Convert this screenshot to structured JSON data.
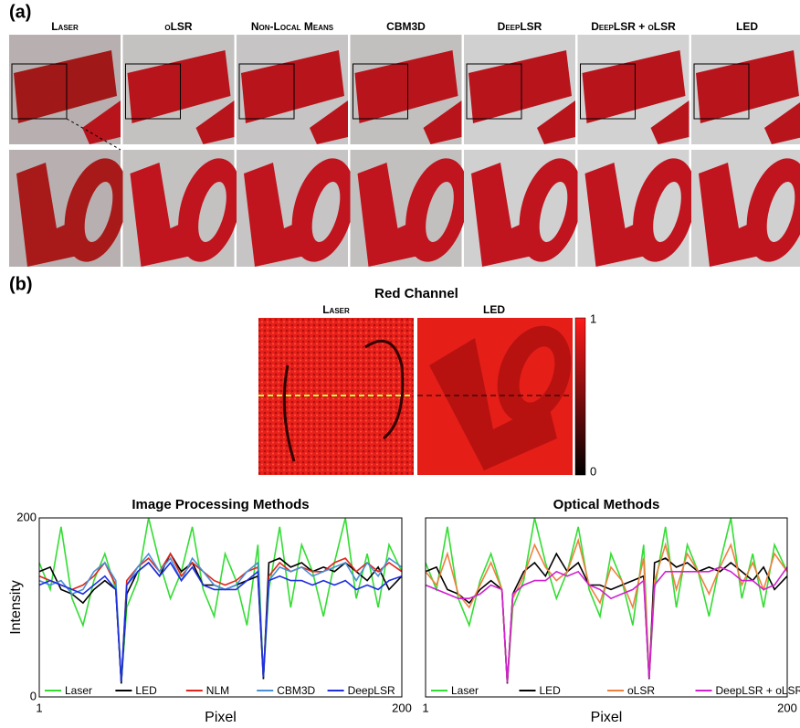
{
  "panel_labels": [
    "(a)",
    "(b)"
  ],
  "methods": [
    "Laser",
    "oLSR",
    "Non-Local Means",
    "CBM3D",
    "DeepLSR",
    "DeepLSR + oLSR",
    "LED"
  ],
  "red_channel": {
    "title": "Red Channel",
    "labels": [
      "Laser",
      "LED"
    ],
    "colorbar_ticks": [
      1,
      0
    ]
  },
  "chart_data": [
    {
      "type": "line",
      "title": "Image Processing Methods",
      "xlabel": "Pixel",
      "ylabel": "Intensity",
      "x": [
        1,
        7,
        13,
        19,
        25,
        31,
        37,
        43,
        46,
        49,
        55,
        61,
        67,
        73,
        79,
        85,
        91,
        97,
        103,
        109,
        115,
        121,
        124,
        127,
        133,
        139,
        145,
        151,
        157,
        163,
        169,
        175,
        181,
        187,
        193,
        200
      ],
      "xlim": [
        1,
        200
      ],
      "ylim": [
        0,
        200
      ],
      "xticks": [
        1,
        200
      ],
      "yticks": [
        0,
        200
      ],
      "series": [
        {
          "name": "Laser",
          "color": "#33dd33",
          "values": [
            150,
            120,
            190,
            110,
            80,
            130,
            160,
            120,
            15,
            100,
            130,
            200,
            150,
            110,
            140,
            190,
            120,
            90,
            160,
            130,
            80,
            170,
            20,
            120,
            190,
            100,
            170,
            140,
            90,
            150,
            200,
            110,
            160,
            100,
            170,
            140
          ]
        },
        {
          "name": "LED",
          "color": "#000000",
          "values": [
            140,
            145,
            120,
            115,
            105,
            120,
            130,
            120,
            15,
            115,
            140,
            150,
            135,
            160,
            140,
            150,
            125,
            125,
            120,
            125,
            130,
            135,
            20,
            150,
            155,
            145,
            150,
            140,
            145,
            140,
            150,
            140,
            130,
            145,
            120,
            135
          ]
        },
        {
          "name": "NLM",
          "color": "#e0261c",
          "values": [
            135,
            130,
            125,
            120,
            125,
            135,
            150,
            125,
            17,
            130,
            145,
            155,
            140,
            160,
            135,
            150,
            140,
            130,
            125,
            130,
            140,
            145,
            22,
            135,
            150,
            140,
            145,
            140,
            140,
            150,
            155,
            140,
            150,
            140,
            150,
            140
          ]
        },
        {
          "name": "CBM3D",
          "color": "#4a90d9",
          "values": [
            130,
            125,
            130,
            115,
            120,
            140,
            150,
            130,
            17,
            125,
            145,
            160,
            140,
            155,
            130,
            155,
            140,
            125,
            120,
            125,
            140,
            150,
            22,
            130,
            145,
            140,
            145,
            135,
            140,
            145,
            150,
            130,
            150,
            135,
            155,
            145
          ]
        },
        {
          "name": "DeepLSR",
          "color": "#1f2fe0",
          "values": [
            125,
            130,
            125,
            120,
            115,
            125,
            135,
            120,
            17,
            125,
            140,
            150,
            135,
            150,
            130,
            145,
            125,
            120,
            120,
            120,
            130,
            140,
            22,
            130,
            135,
            130,
            130,
            125,
            130,
            125,
            130,
            120,
            125,
            120,
            130,
            135
          ]
        }
      ]
    },
    {
      "type": "line",
      "title": "Optical Methods",
      "xlabel": "Pixel",
      "x": [
        1,
        7,
        13,
        19,
        25,
        31,
        37,
        43,
        46,
        49,
        55,
        61,
        67,
        73,
        79,
        85,
        91,
        97,
        103,
        109,
        115,
        121,
        124,
        127,
        133,
        139,
        145,
        151,
        157,
        163,
        169,
        175,
        181,
        187,
        193,
        200
      ],
      "xlim": [
        1,
        200
      ],
      "ylim": [
        0,
        200
      ],
      "xticks": [
        1,
        200
      ],
      "series": [
        {
          "name": "Laser",
          "color": "#33dd33",
          "values": [
            150,
            120,
            190,
            110,
            80,
            130,
            160,
            120,
            15,
            100,
            130,
            200,
            150,
            110,
            140,
            190,
            120,
            90,
            160,
            130,
            80,
            170,
            20,
            120,
            190,
            100,
            170,
            140,
            90,
            150,
            200,
            110,
            160,
            100,
            170,
            140
          ]
        },
        {
          "name": "LED",
          "color": "#000000",
          "values": [
            140,
            145,
            120,
            115,
            105,
            120,
            130,
            120,
            15,
            115,
            140,
            150,
            135,
            160,
            140,
            150,
            125,
            125,
            120,
            125,
            130,
            135,
            20,
            150,
            155,
            145,
            150,
            140,
            145,
            140,
            150,
            140,
            130,
            145,
            120,
            135
          ]
        },
        {
          "name": "oLSR",
          "color": "#f08040",
          "values": [
            140,
            125,
            160,
            115,
            100,
            125,
            150,
            120,
            16,
            110,
            135,
            170,
            145,
            130,
            140,
            175,
            125,
            105,
            145,
            130,
            100,
            155,
            21,
            130,
            170,
            120,
            160,
            140,
            115,
            145,
            170,
            125,
            150,
            120,
            160,
            140
          ]
        },
        {
          "name": "DeepLSR + oLSR",
          "color": "#d020d0",
          "values": [
            125,
            120,
            115,
            110,
            110,
            115,
            125,
            120,
            16,
            115,
            125,
            130,
            130,
            140,
            135,
            140,
            125,
            120,
            110,
            115,
            120,
            130,
            21,
            125,
            140,
            140,
            140,
            140,
            140,
            145,
            140,
            130,
            130,
            120,
            125,
            145
          ]
        }
      ]
    }
  ]
}
